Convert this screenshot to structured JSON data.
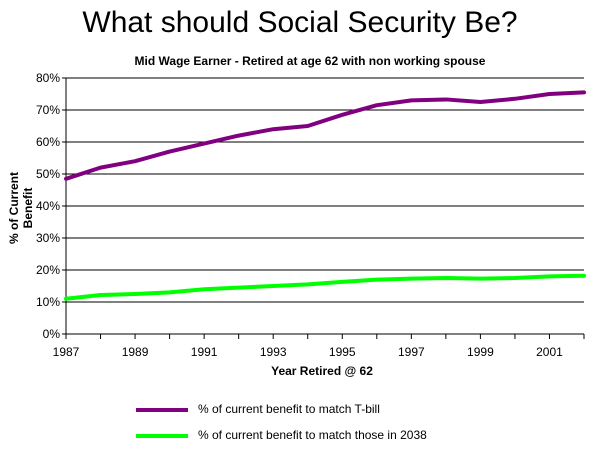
{
  "title": "What should Social Security Be?",
  "subtitle": "Mid Wage Earner - Retired at age 62 with non working spouse",
  "chart_data": {
    "type": "line",
    "title": "What should Social Security Be?",
    "subtitle": "Mid Wage Earner - Retired at age 62 with non working spouse",
    "xlabel": "Year Retired @ 62",
    "ylabel": "% of Current Benefit",
    "x": [
      1987,
      1988,
      1989,
      1990,
      1991,
      1992,
      1993,
      1994,
      1995,
      1996,
      1997,
      1998,
      1999,
      2000,
      2001,
      2002
    ],
    "xlim": [
      1987,
      2002
    ],
    "ylim": [
      0,
      80
    ],
    "yticks": [
      "0%",
      "10%",
      "20%",
      "30%",
      "40%",
      "50%",
      "60%",
      "70%",
      "80%"
    ],
    "xticks": [
      "1987",
      "1989",
      "1991",
      "1993",
      "1995",
      "1997",
      "1999",
      "2001"
    ],
    "grid": "horizontal",
    "legend_position": "bottom",
    "series": [
      {
        "name": "% of current benefit to match T-bill",
        "color": "#800080",
        "values": [
          48.5,
          52,
          54,
          57,
          59.5,
          62,
          64,
          65,
          68.5,
          71.5,
          73,
          73.3,
          72.5,
          73.5,
          75,
          75.5
        ]
      },
      {
        "name": "% of current benefit to match those in 2038",
        "color": "#00ff00",
        "values": [
          11,
          12.2,
          12.5,
          13,
          14,
          14.5,
          15,
          15.5,
          16.3,
          17,
          17.3,
          17.5,
          17.3,
          17.5,
          18,
          18.2
        ]
      }
    ]
  }
}
